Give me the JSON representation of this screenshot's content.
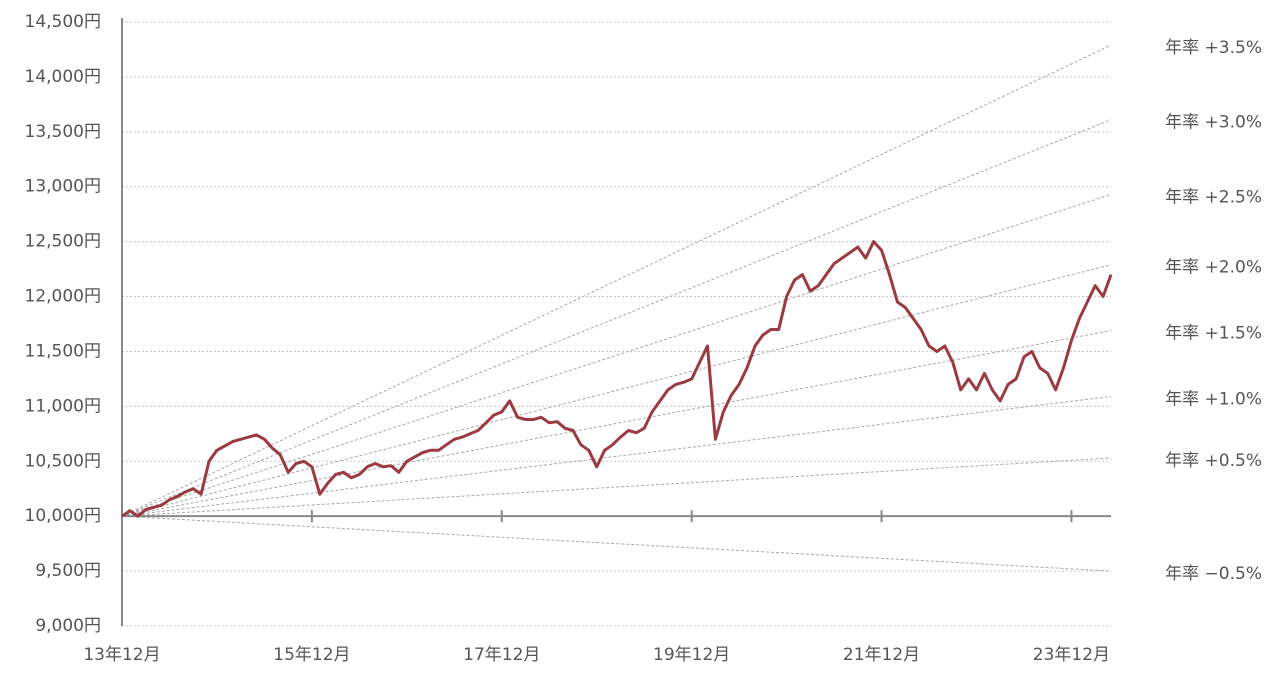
{
  "chart_data": {
    "type": "line",
    "color": "#9b3a40",
    "categories": [
      "13年12月",
      null,
      null,
      null,
      null,
      null,
      null,
      null,
      null,
      null,
      null,
      null,
      null,
      null,
      null,
      null,
      null,
      null,
      null,
      null,
      null,
      null,
      null,
      null,
      "15年12月",
      null,
      null,
      null,
      null,
      null,
      null,
      null,
      null,
      null,
      null,
      null,
      null,
      null,
      null,
      null,
      null,
      null,
      null,
      null,
      null,
      null,
      null,
      null,
      "17年12月",
      null,
      null,
      null,
      null,
      null,
      null,
      null,
      null,
      null,
      null,
      null,
      null,
      null,
      null,
      null,
      null,
      null,
      null,
      null,
      null,
      null,
      null,
      null,
      "19年12月",
      null,
      null,
      null,
      null,
      null,
      null,
      null,
      null,
      null,
      null,
      null,
      null,
      null,
      null,
      null,
      null,
      null,
      null,
      null,
      null,
      null,
      null,
      null,
      "21年12月",
      null,
      null,
      null,
      null,
      null,
      null,
      null,
      null,
      null,
      null,
      null,
      null,
      null,
      null,
      null,
      null,
      null,
      null,
      null,
      null,
      null,
      null,
      null,
      "23年12月",
      null,
      null,
      null,
      null,
      null
    ],
    "values": [
      10000,
      10050,
      10000,
      10060,
      10080,
      10100,
      10150,
      10180,
      10220,
      10250,
      10200,
      10500,
      10600,
      10640,
      10680,
      10700,
      10720,
      10740,
      10700,
      10620,
      10560,
      10400,
      10480,
      10500,
      10450,
      10200,
      10300,
      10380,
      10400,
      10350,
      10380,
      10450,
      10480,
      10450,
      10460,
      10400,
      10500,
      10540,
      10580,
      10600,
      10600,
      10650,
      10700,
      10720,
      10750,
      10780,
      10850,
      10920,
      10950,
      11050,
      10900,
      10880,
      10880,
      10900,
      10850,
      10860,
      10800,
      10780,
      10650,
      10600,
      10450,
      10600,
      10650,
      10720,
      10780,
      10760,
      10800,
      10950,
      11050,
      11150,
      11200,
      11220,
      11250,
      11400,
      11550,
      10700,
      10950,
      11100,
      11200,
      11350,
      11550,
      11650,
      11700,
      11700,
      12000,
      12150,
      12200,
      12050,
      12100,
      12200,
      12300,
      12350,
      12400,
      12450,
      12350,
      12500,
      12420,
      12200,
      11950,
      11900,
      11800,
      11700,
      11550,
      11500,
      11550,
      11400,
      11150,
      11250,
      11150,
      11300,
      11150,
      11050,
      11200,
      11250,
      11450,
      11500,
      11350,
      11300,
      11150,
      11350,
      11600,
      11800,
      11950,
      12100,
      12000,
      12200
    ],
    "reference_lines": [
      {
        "label": "年率 +3.5%",
        "values": [
          10000,
          14290
        ]
      },
      {
        "label": "年率 +3.0%",
        "values": [
          10000,
          13610
        ]
      },
      {
        "label": "年率 +2.5%",
        "values": [
          10000,
          12930
        ]
      },
      {
        "label": "年率 +2.0%",
        "values": [
          10000,
          12290
        ]
      },
      {
        "label": "年率 +1.5%",
        "values": [
          10000,
          11690
        ]
      },
      {
        "label": "年率 +1.0%",
        "values": [
          10000,
          11090
        ]
      },
      {
        "label": "年率 +0.5%",
        "values": [
          10000,
          10530
        ]
      },
      {
        "label": "年率 −0.5%",
        "values": [
          10000,
          9500
        ]
      }
    ],
    "ylim": [
      9000,
      14500
    ],
    "yticks": [
      {
        "value": 9000,
        "label": "9,000円"
      },
      {
        "value": 9500,
        "label": "9,500円"
      },
      {
        "value": 10000,
        "label": "10,000円"
      },
      {
        "value": 10500,
        "label": "10,500円"
      },
      {
        "value": 11000,
        "label": "11,000円"
      },
      {
        "value": 11500,
        "label": "11,500円"
      },
      {
        "value": 12000,
        "label": "12,000円"
      },
      {
        "value": 12500,
        "label": "12,500円"
      },
      {
        "value": 13000,
        "label": "13,000円"
      },
      {
        "value": 13500,
        "label": "13,500円"
      },
      {
        "value": 14000,
        "label": "14,000円"
      },
      {
        "value": 14500,
        "label": "14,500円"
      }
    ],
    "grid": true
  }
}
